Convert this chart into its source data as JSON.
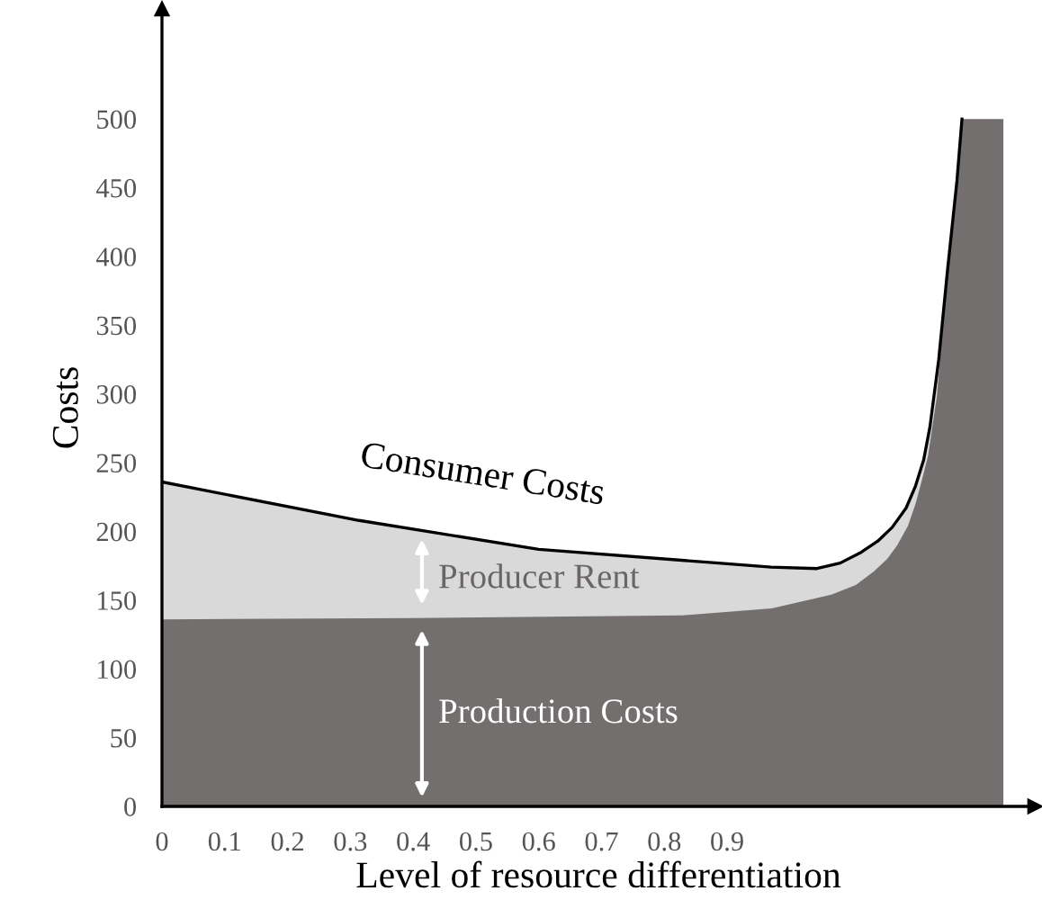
{
  "chart_data": {
    "type": "area",
    "xlabel": "Level of resource differentiation",
    "ylabel": "Costs",
    "xlim": [
      0,
      1.39
    ],
    "ylim": [
      0,
      580
    ],
    "xticks": [
      0,
      0.1,
      0.2,
      0.3,
      0.4,
      0.5,
      0.6,
      0.7,
      0.8,
      0.9
    ],
    "yticks": [
      0,
      50,
      100,
      150,
      200,
      250,
      300,
      350,
      400,
      450,
      500
    ],
    "series": [
      {
        "color": "#d9d9d9",
        "x": [
          0,
          0.314,
          0.6,
          0.886,
          0.97,
          1.043,
          1.08,
          1.114,
          1.14,
          1.163,
          1.185,
          1.2,
          1.213,
          1.223,
          1.237,
          1.251,
          1.266,
          1.274
        ],
        "values": [
          236,
          208,
          187,
          177,
          174,
          173,
          177,
          185,
          193,
          203,
          217,
          233,
          252,
          276,
          325,
          390,
          455,
          500
        ]
      },
      {
        "color": "#736f6e",
        "x": [
          0,
          0.4,
          0.829,
          0.971,
          1.066,
          1.105,
          1.134,
          1.155,
          1.171,
          1.188,
          1.2,
          1.21,
          1.22,
          1.234,
          1.251,
          1.266,
          1.274,
          1.34
        ],
        "values": [
          136,
          137,
          139,
          144,
          154,
          161,
          171,
          180,
          190,
          204,
          220,
          237,
          255,
          298,
          390,
          455,
          500,
          500
        ]
      }
    ],
    "annotations": [
      "Consumer Costs",
      "Producer Rent",
      "Production Costs"
    ]
  }
}
